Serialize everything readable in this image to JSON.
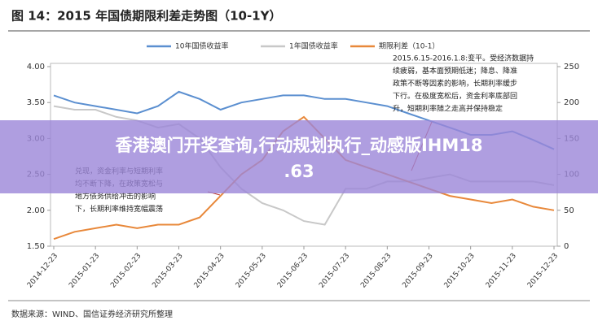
{
  "chart_data": {
    "type": "line",
    "title": "图 14：2015 年国债期限利差走势图（10-1Y）",
    "source": "数据来源：WIND、国信证券经济研究所整理",
    "overlay": "香港澳门开奖查询,行动规划执行_动感版IHM18.63",
    "categories": [
      "2014-12-23",
      null,
      "2015-01-23",
      null,
      "2015-02-23",
      null,
      "2015-03-23",
      null,
      "2015-04-23",
      null,
      "2015-05-23",
      null,
      "2015-06-23",
      null,
      "2015-07-23",
      null,
      "2015-08-23",
      null,
      "2015-09-23",
      null,
      "2015-10-23",
      null,
      "2015-11-23",
      null,
      "2015-12-23"
    ],
    "series": [
      {
        "name": "10年国债收益率",
        "color": "#5b8fd0",
        "values": [
          3.6,
          3.5,
          3.45,
          3.4,
          3.35,
          3.45,
          3.65,
          3.55,
          3.4,
          3.5,
          3.55,
          3.6,
          3.6,
          3.55,
          3.55,
          3.5,
          3.45,
          3.35,
          3.25,
          3.15,
          3.05,
          3.05,
          3.1,
          2.98,
          2.85
        ]
      },
      {
        "name": "1年国债收益率",
        "color": "#c8c8c8",
        "values": [
          3.45,
          3.4,
          3.4,
          3.3,
          3.25,
          3.15,
          3.2,
          3.0,
          2.6,
          2.3,
          2.1,
          2.0,
          1.85,
          1.8,
          2.3,
          2.3,
          2.4,
          2.4,
          2.45,
          2.5,
          2.4,
          2.4,
          2.4,
          2.4,
          2.35
        ]
      },
      {
        "name": "期限利差（10-1）",
        "color": "#e8883a",
        "axis": "y2",
        "values": [
          10,
          20,
          25,
          30,
          25,
          30,
          30,
          40,
          70,
          100,
          120,
          160,
          180,
          150,
          120,
          110,
          100,
          90,
          80,
          70,
          65,
          60,
          65,
          55,
          50
        ]
      }
    ],
    "ylim": [
      1.5,
      4.0
    ],
    "yticks": [
      {
        "value": 1.5,
        "label": "1.50"
      },
      {
        "value": 2.0,
        "label": "2.00"
      },
      {
        "value": 2.5,
        "label": "2.50"
      },
      {
        "value": 3.0,
        "label": "3.00"
      },
      {
        "value": 3.5,
        "label": "3.50"
      },
      {
        "value": 4.0,
        "label": "4.00"
      }
    ],
    "y2lim": [
      0,
      250
    ],
    "y2ticks": [
      0,
      50,
      100,
      150,
      200,
      250
    ],
    "annotations": [
      {
        "lines": [
          "2015.6.15-2016.1.8:变平。受经济数据持",
          "续疲弱，基本面预期低迷；降息、降准",
          "政策不断等因素的影响，长期利率缓步",
          "下行。在极度宽松后，资金利率底部回",
          "升，短期利率随之走高并保持稳定"
        ]
      },
      {
        "lines": [
          "兑现，资金利率与短期利率",
          "均不断下降，在政策宽松与",
          "地方债务供给冲击的影响",
          "下，长期利率维持宽幅震荡"
        ]
      }
    ]
  }
}
